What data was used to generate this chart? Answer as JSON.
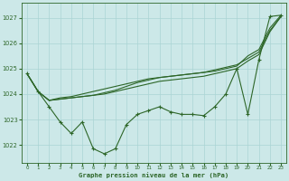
{
  "title": "Graphe pression niveau de la mer (hPa)",
  "yticks": [
    1022,
    1023,
    1024,
    1025,
    1026,
    1027
  ],
  "ylim": [
    1021.3,
    1027.6
  ],
  "xlim": [
    -0.5,
    23.5
  ],
  "bg_color": "#cce8e8",
  "grid_color": "#aad4d4",
  "line_color": "#2d6628",
  "hours": [
    0,
    1,
    2,
    3,
    4,
    5,
    6,
    7,
    8,
    9,
    10,
    11,
    12,
    13,
    14,
    15,
    16,
    17,
    18,
    19,
    20,
    21,
    22,
    23
  ],
  "line_detailed": [
    1024.8,
    1024.1,
    1023.5,
    1022.9,
    1022.45,
    1022.9,
    1021.85,
    1021.65,
    1021.85,
    1022.8,
    1023.2,
    1023.35,
    1023.5,
    1023.3,
    1023.2,
    1023.2,
    1023.15,
    1023.5,
    1024.0,
    1025.0,
    1023.2,
    1025.35,
    1027.05,
    1027.1
  ],
  "line_a": [
    1024.8,
    1024.1,
    1023.75,
    1023.85,
    1023.9,
    1024.0,
    1024.1,
    1024.2,
    1024.3,
    1024.4,
    1024.5,
    1024.6,
    1024.65,
    1024.7,
    1024.75,
    1024.8,
    1024.85,
    1024.9,
    1025.0,
    1025.1,
    1025.5,
    1025.75,
    1026.6,
    1027.1
  ],
  "line_b": [
    1024.8,
    1024.1,
    1023.75,
    1023.8,
    1023.85,
    1023.9,
    1023.95,
    1024.0,
    1024.1,
    1024.2,
    1024.3,
    1024.4,
    1024.5,
    1024.55,
    1024.6,
    1024.65,
    1024.7,
    1024.8,
    1024.9,
    1025.0,
    1025.3,
    1025.55,
    1026.45,
    1027.05
  ],
  "line_c": [
    1024.8,
    1024.1,
    1023.75,
    1023.8,
    1023.85,
    1023.9,
    1023.95,
    1024.05,
    1024.15,
    1024.3,
    1024.45,
    1024.55,
    1024.65,
    1024.7,
    1024.75,
    1024.8,
    1024.85,
    1024.95,
    1025.05,
    1025.15,
    1025.4,
    1025.65,
    1026.5,
    1027.05
  ]
}
